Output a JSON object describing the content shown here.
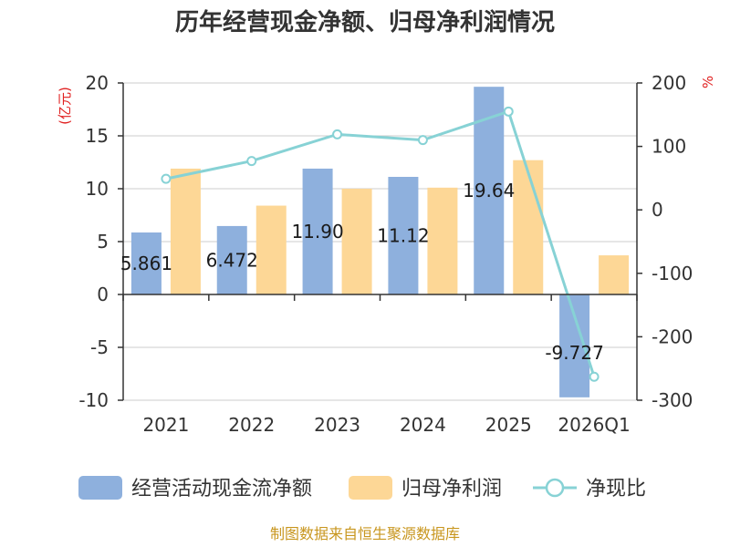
{
  "chart_data": {
    "type": "bar",
    "title": "历年经营现金净额、归母净利润情况",
    "categories": [
      "2021",
      "2022",
      "2023",
      "2024",
      "2025",
      "2026Q1"
    ],
    "left_unit": "(亿元)",
    "right_unit": "%",
    "left_ticks": [
      "20",
      "15",
      "10",
      "5",
      "0",
      "-5",
      "-10"
    ],
    "right_ticks": [
      "200",
      "100",
      "0",
      "-100",
      "-200",
      "-300"
    ],
    "ylim_left": [
      -10,
      20
    ],
    "ylim_right": [
      -300,
      200
    ],
    "series": [
      {
        "name": "经营活动现金流净额",
        "kind": "bar",
        "axis": "left",
        "color": "#8eb0dd",
        "values": [
          5.861,
          6.472,
          11.9,
          11.12,
          19.64,
          -9.727
        ],
        "labels": [
          "5.861",
          "6.472",
          "11.90",
          "11.12",
          "19.64",
          "-9.727"
        ]
      },
      {
        "name": "归母净利润",
        "kind": "bar",
        "axis": "left",
        "color": "#fdd796",
        "values": [
          11.9,
          8.4,
          10.0,
          10.1,
          12.7,
          3.7
        ]
      },
      {
        "name": "净现比",
        "kind": "line",
        "axis": "right",
        "color": "#87d2d5",
        "values": [
          49,
          77,
          119,
          110,
          155,
          -263
        ]
      }
    ],
    "source": "制图数据来自恒生聚源数据库"
  }
}
